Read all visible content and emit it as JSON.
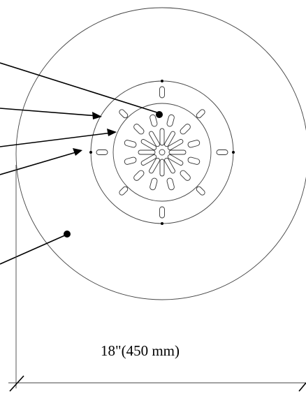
{
  "dimension": {
    "label": "18\"(450 mm)"
  },
  "colors": {
    "line": "#444444",
    "leader": "#000000",
    "background": "#ffffff"
  }
}
